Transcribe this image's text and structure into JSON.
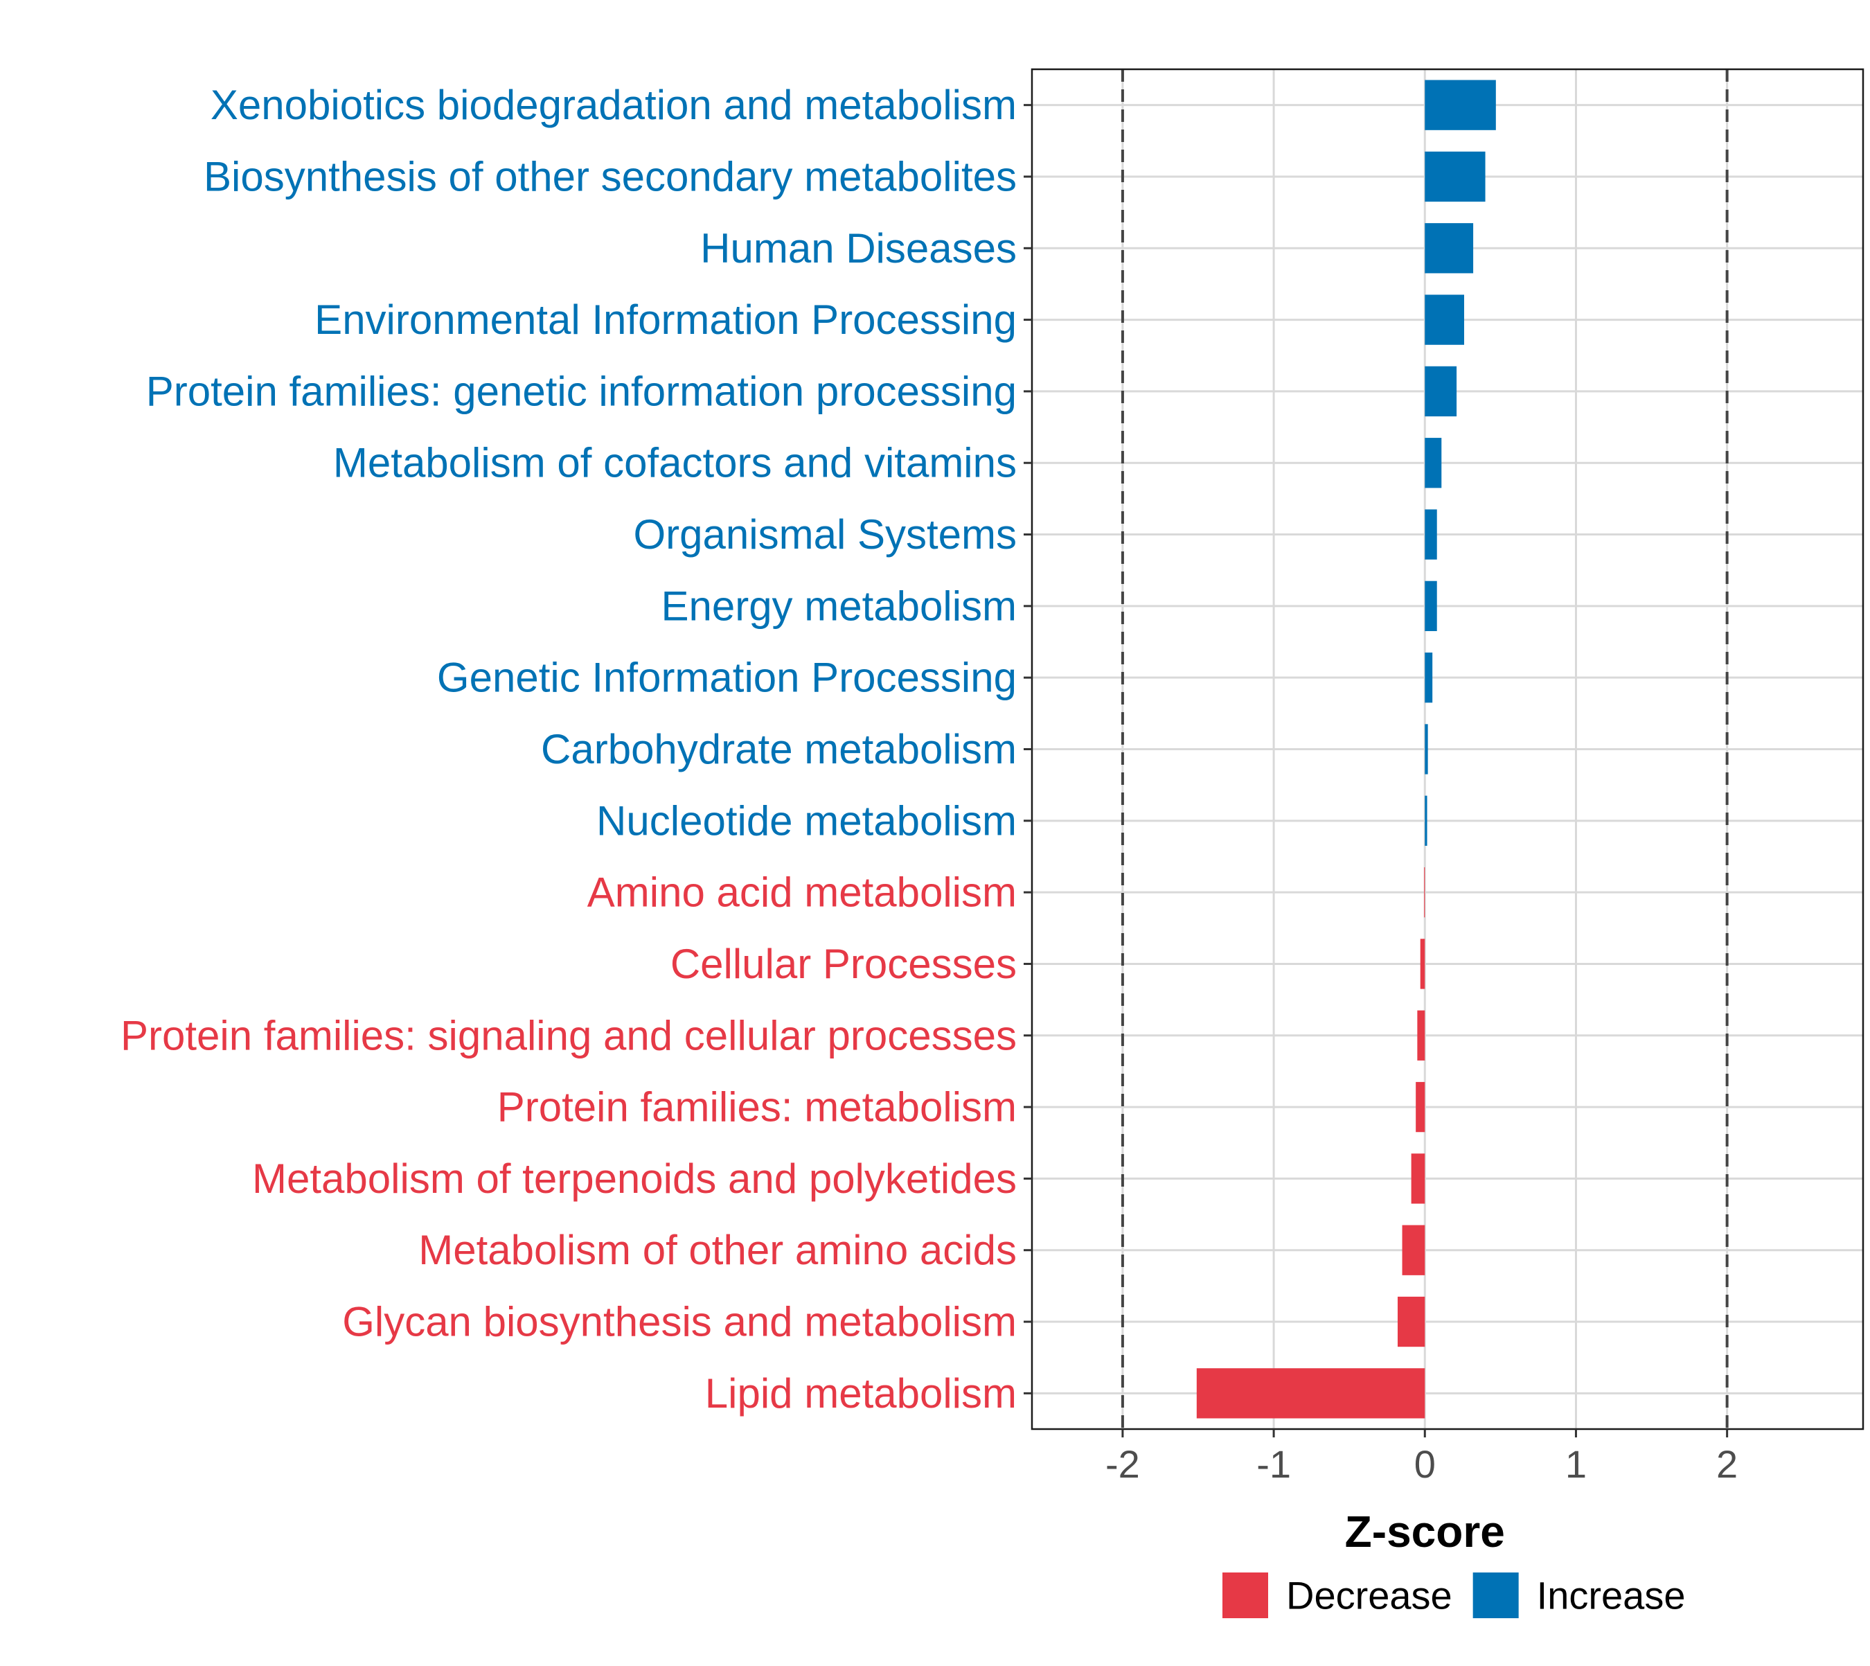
{
  "chart_data": {
    "type": "bar",
    "orientation": "horizontal",
    "title": "",
    "xlabel": "Z-score",
    "ylabel": "",
    "xlim": [
      -2.6,
      2.9
    ],
    "x_ticks": [
      -2,
      -1,
      0,
      1,
      2
    ],
    "x_tick_labels": [
      "-2",
      "-1",
      "0",
      "1",
      "2"
    ],
    "reference_lines": [
      -2,
      2
    ],
    "grid": true,
    "legend_position": "bottom",
    "colors": {
      "Decrease": "#E63946",
      "Increase": "#0072B5"
    },
    "legend": [
      {
        "label": "Decrease",
        "color": "#E63946"
      },
      {
        "label": "Increase",
        "color": "#0072B5"
      }
    ],
    "categories": [
      "Xenobiotics biodegradation and metabolism",
      "Biosynthesis of other secondary metabolites",
      "Human Diseases",
      "Environmental Information Processing",
      "Protein families: genetic information processing",
      "Metabolism of cofactors and vitamins",
      "Organismal Systems",
      "Energy metabolism",
      "Genetic Information Processing",
      "Carbohydrate metabolism",
      "Nucleotide metabolism",
      "Amino acid metabolism",
      "Cellular Processes",
      "Protein families: signaling and cellular processes",
      "Protein families: metabolism",
      "Metabolism of terpenoids and polyketides",
      "Metabolism of other amino acids",
      "Glycan biosynthesis and metabolism",
      "Lipid metabolism"
    ],
    "values": [
      0.47,
      0.4,
      0.32,
      0.26,
      0.21,
      0.11,
      0.08,
      0.08,
      0.05,
      0.02,
      0.015,
      -0.005,
      -0.03,
      -0.05,
      -0.06,
      -0.09,
      -0.15,
      -0.18,
      -1.51
    ],
    "groups": [
      "Increase",
      "Increase",
      "Increase",
      "Increase",
      "Increase",
      "Increase",
      "Increase",
      "Increase",
      "Increase",
      "Increase",
      "Increase",
      "Decrease",
      "Decrease",
      "Decrease",
      "Decrease",
      "Decrease",
      "Decrease",
      "Decrease",
      "Decrease"
    ]
  }
}
